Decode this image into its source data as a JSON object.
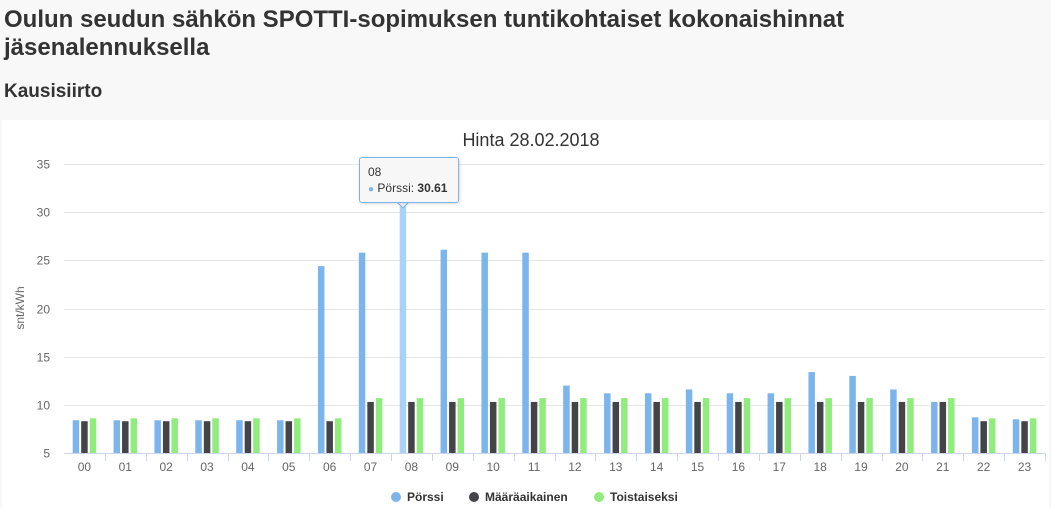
{
  "page": {
    "title": "Oulun seudun sähkön SPOTTI-sopimuksen tuntikohtaiset kokonaishinnat jäsenalennuksella",
    "section": "Kausisiirto"
  },
  "colors": {
    "porssi": "#7cb5ec",
    "porssi_hover": "#a9d2f6",
    "maaraaikainen": "#434348",
    "toistaiseksi": "#90ed7d",
    "grid": "#e6e6e6"
  },
  "tooltip": {
    "header": "08",
    "series": "Pörssi",
    "value": "30.61"
  },
  "chart_data": {
    "type": "bar",
    "title": "Hinta 28.02.2018",
    "xlabel": "",
    "ylabel": "snt/kWh",
    "ylim": [
      5,
      35
    ],
    "yticks": [
      5,
      10,
      15,
      20,
      25,
      30,
      35
    ],
    "grid": true,
    "legend": "bottom-center",
    "categories": [
      "00",
      "01",
      "02",
      "03",
      "04",
      "05",
      "06",
      "07",
      "08",
      "09",
      "10",
      "11",
      "12",
      "13",
      "14",
      "15",
      "16",
      "17",
      "18",
      "19",
      "20",
      "21",
      "22",
      "23"
    ],
    "series": [
      {
        "name": "Pörssi",
        "values": [
          8.4,
          8.4,
          8.4,
          8.4,
          8.4,
          8.4,
          24.4,
          25.8,
          30.61,
          26.1,
          25.8,
          25.8,
          12.0,
          11.2,
          11.2,
          11.6,
          11.2,
          11.2,
          13.4,
          13.0,
          11.6,
          10.3,
          8.7,
          8.5
        ]
      },
      {
        "name": "Määräaikainen",
        "values": [
          8.3,
          8.3,
          8.3,
          8.3,
          8.3,
          8.3,
          8.3,
          10.3,
          10.3,
          10.3,
          10.3,
          10.3,
          10.3,
          10.3,
          10.3,
          10.3,
          10.3,
          10.3,
          10.3,
          10.3,
          10.3,
          10.3,
          8.3,
          8.3
        ]
      },
      {
        "name": "Toistaiseksi",
        "values": [
          8.6,
          8.6,
          8.6,
          8.6,
          8.6,
          8.6,
          8.6,
          10.7,
          10.7,
          10.7,
          10.7,
          10.7,
          10.7,
          10.7,
          10.7,
          10.7,
          10.7,
          10.7,
          10.7,
          10.7,
          10.7,
          10.7,
          8.6,
          8.6
        ]
      }
    ]
  }
}
